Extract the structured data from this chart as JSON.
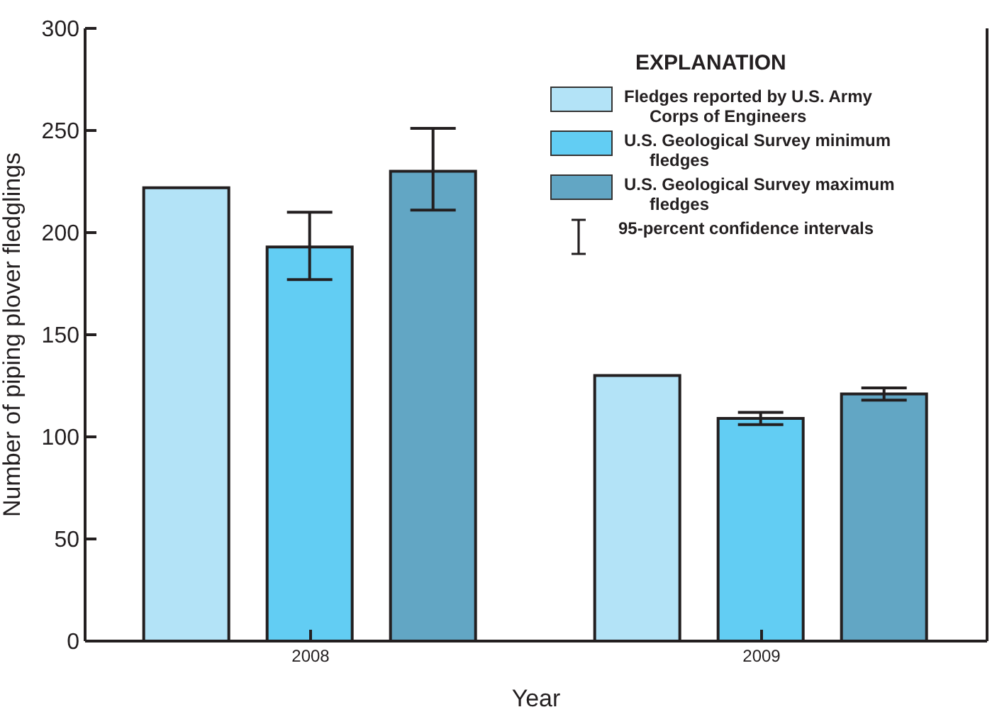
{
  "chart_data": {
    "type": "bar",
    "xlabel": "Year",
    "ylabel": "Number of piping plover fledglings",
    "categories": [
      "2008",
      "2009"
    ],
    "series": [
      {
        "name": "Fledges reported by U.S. Army Corps of Engineers",
        "color": "#b3e3f7",
        "values": [
          222,
          130
        ]
      },
      {
        "name": "U.S. Geological Survey minimum fledges",
        "color": "#62cdf3",
        "values": [
          193,
          109
        ],
        "errors": [
          [
            177,
            210
          ],
          [
            106,
            112
          ]
        ]
      },
      {
        "name": "U.S. Geological Survey maximum fledges",
        "color": "#62a6c4",
        "values": [
          230,
          121
        ],
        "errors": [
          [
            211,
            251
          ],
          [
            118,
            124
          ]
        ]
      }
    ],
    "ylim": [
      0,
      300
    ],
    "yticks": [
      0,
      50,
      100,
      150,
      200,
      250,
      300
    ],
    "legend": "top right",
    "legend_title": "EXPLANATION",
    "annotations": [
      "95-percent confidence intervals"
    ]
  }
}
